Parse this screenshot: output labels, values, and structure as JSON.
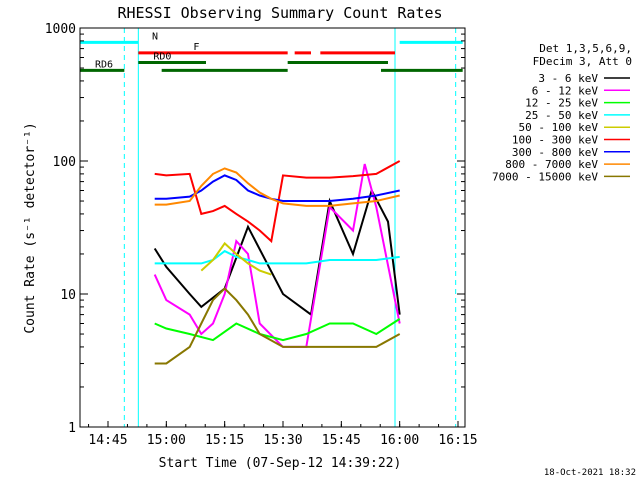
{
  "chart_data": {
    "type": "line",
    "title": "RHESSI Observing Summary Count Rates",
    "xlabel": "Start Time (07-Sep-12 14:39:22)",
    "ylabel": "Count Rate (s⁻¹ detector⁻¹)",
    "y_scale": "log",
    "ylim": [
      1,
      1000
    ],
    "xlim_minutes": [
      14.63,
      16.28
    ],
    "x_ticks": [
      {
        "label": "14:45",
        "value": 14.75
      },
      {
        "label": "15:00",
        "value": 15.0
      },
      {
        "label": "15:15",
        "value": 15.25
      },
      {
        "label": "15:30",
        "value": 15.5
      },
      {
        "label": "15:45",
        "value": 15.75
      },
      {
        "label": "16:00",
        "value": 16.0
      },
      {
        "label": "16:15",
        "value": 16.25
      }
    ],
    "y_ticks": [
      {
        "label": "1",
        "value": 1
      },
      {
        "label": "10",
        "value": 10
      },
      {
        "label": "100",
        "value": 100
      },
      {
        "label": "1000",
        "value": 1000
      }
    ],
    "legend_header": [
      "Det 1,3,5,6,9,",
      "FDecim 3, Att 0"
    ],
    "legend_placement": "right",
    "series": [
      {
        "name": "3 - 6 keV",
        "color": "#000000",
        "x": [
          14.95,
          15.0,
          15.1,
          15.15,
          15.25,
          15.35,
          15.5,
          15.62,
          15.7,
          15.8,
          15.88,
          15.95,
          16.0
        ],
        "y": [
          22,
          16,
          10,
          8,
          11,
          32,
          10,
          7,
          50,
          20,
          60,
          35,
          7
        ]
      },
      {
        "name": "6 - 12 keV",
        "color": "#ff00ff",
        "x": [
          14.95,
          15.0,
          15.1,
          15.15,
          15.2,
          15.25,
          15.3,
          15.35,
          15.4,
          15.5,
          15.6,
          15.7,
          15.8,
          15.85,
          15.9,
          16.0
        ],
        "y": [
          14,
          9,
          7,
          5,
          6,
          10,
          25,
          20,
          6,
          4,
          4,
          45,
          30,
          95,
          45,
          6
        ]
      },
      {
        "name": "12 - 25 keV",
        "color": "#00ff00",
        "x": [
          14.95,
          15.0,
          15.1,
          15.2,
          15.3,
          15.4,
          15.5,
          15.6,
          15.7,
          15.8,
          15.9,
          16.0
        ],
        "y": [
          6,
          5.5,
          5,
          4.5,
          6,
          5,
          4.5,
          5,
          6,
          6,
          5,
          6.5
        ]
      },
      {
        "name": "25 - 50 keV",
        "color": "#00ffff",
        "x": [
          14.95,
          15.0,
          15.1,
          15.15,
          15.2,
          15.25,
          15.3,
          15.35,
          15.4,
          15.45,
          15.5,
          15.6,
          15.7,
          15.8,
          15.9,
          16.0
        ],
        "y": [
          17,
          17,
          17,
          17,
          18,
          21,
          19,
          18,
          17,
          17,
          17,
          17,
          18,
          18,
          18,
          19
        ]
      },
      {
        "name": "50 - 100 keV",
        "color": "#cccc00",
        "x": [
          15.15,
          15.2,
          15.25,
          15.3,
          15.35,
          15.4,
          15.45
        ],
        "y": [
          15,
          18,
          24,
          20,
          17,
          15,
          14
        ]
      },
      {
        "name": "100 - 300 keV",
        "color": "#ff0000",
        "x": [
          14.95,
          15.0,
          15.1,
          15.15,
          15.2,
          15.25,
          15.3,
          15.35,
          15.4,
          15.45,
          15.5,
          15.6,
          15.7,
          15.8,
          15.9,
          16.0
        ],
        "y": [
          80,
          78,
          80,
          40,
          42,
          46,
          40,
          35,
          30,
          25,
          78,
          75,
          75,
          77,
          80,
          100
        ]
      },
      {
        "name": "300 - 800 keV",
        "color": "#0000ff",
        "x": [
          14.95,
          15.0,
          15.1,
          15.15,
          15.2,
          15.25,
          15.3,
          15.35,
          15.4,
          15.45,
          15.5,
          15.6,
          15.7,
          15.8,
          15.9,
          16.0
        ],
        "y": [
          52,
          52,
          54,
          60,
          70,
          78,
          72,
          60,
          55,
          52,
          50,
          50,
          50,
          52,
          55,
          60
        ]
      },
      {
        "name": "800 - 7000 keV",
        "color": "#ff8800",
        "x": [
          14.95,
          15.0,
          15.1,
          15.15,
          15.2,
          15.25,
          15.3,
          15.35,
          15.4,
          15.45,
          15.5,
          15.6,
          15.7,
          15.8,
          15.9,
          16.0
        ],
        "y": [
          47,
          47,
          50,
          65,
          80,
          88,
          82,
          68,
          58,
          52,
          48,
          46,
          46,
          48,
          50,
          55
        ]
      },
      {
        "name": "7000 - 15000 keV",
        "color": "#887700",
        "x": [
          14.95,
          15.0,
          15.1,
          15.15,
          15.2,
          15.25,
          15.3,
          15.35,
          15.4,
          15.5,
          15.6,
          15.7,
          15.8,
          15.9,
          16.0
        ],
        "y": [
          3,
          3,
          4,
          6,
          9,
          11,
          9,
          7,
          5,
          4,
          4,
          4,
          4,
          4,
          5
        ]
      }
    ],
    "flag_bars": [
      {
        "label": "N",
        "color": "#00ffff",
        "y": 780,
        "segments": [
          [
            14.63,
            14.88
          ],
          [
            16.0,
            16.27
          ]
        ]
      },
      {
        "label": "F",
        "color": "#ff0000",
        "y": 650,
        "segments": [
          [
            14.88,
            15.52
          ],
          [
            15.55,
            15.62
          ],
          [
            15.66,
            15.98
          ]
        ]
      },
      {
        "label": "RD0",
        "color": "#006600",
        "y": 550,
        "segments": [
          [
            14.88,
            15.17
          ],
          [
            15.52,
            15.95
          ]
        ]
      },
      {
        "label": "RD6",
        "color": "#006600",
        "y": 480,
        "segments": [
          [
            14.63,
            14.82
          ],
          [
            14.98,
            15.52
          ],
          [
            15.92,
            16.27
          ]
        ]
      }
    ],
    "vertical_markers": [
      {
        "x": 14.82,
        "color": "#00ffff",
        "style": "dashed"
      },
      {
        "x": 14.88,
        "color": "#00ffff",
        "style": "solid"
      },
      {
        "x": 15.98,
        "color": "#00ffff",
        "style": "solid"
      },
      {
        "x": 16.24,
        "color": "#00ffff",
        "style": "dashed"
      }
    ],
    "grid": false
  },
  "footer": {
    "date_stamp": "18-Oct-2021 18:32"
  }
}
